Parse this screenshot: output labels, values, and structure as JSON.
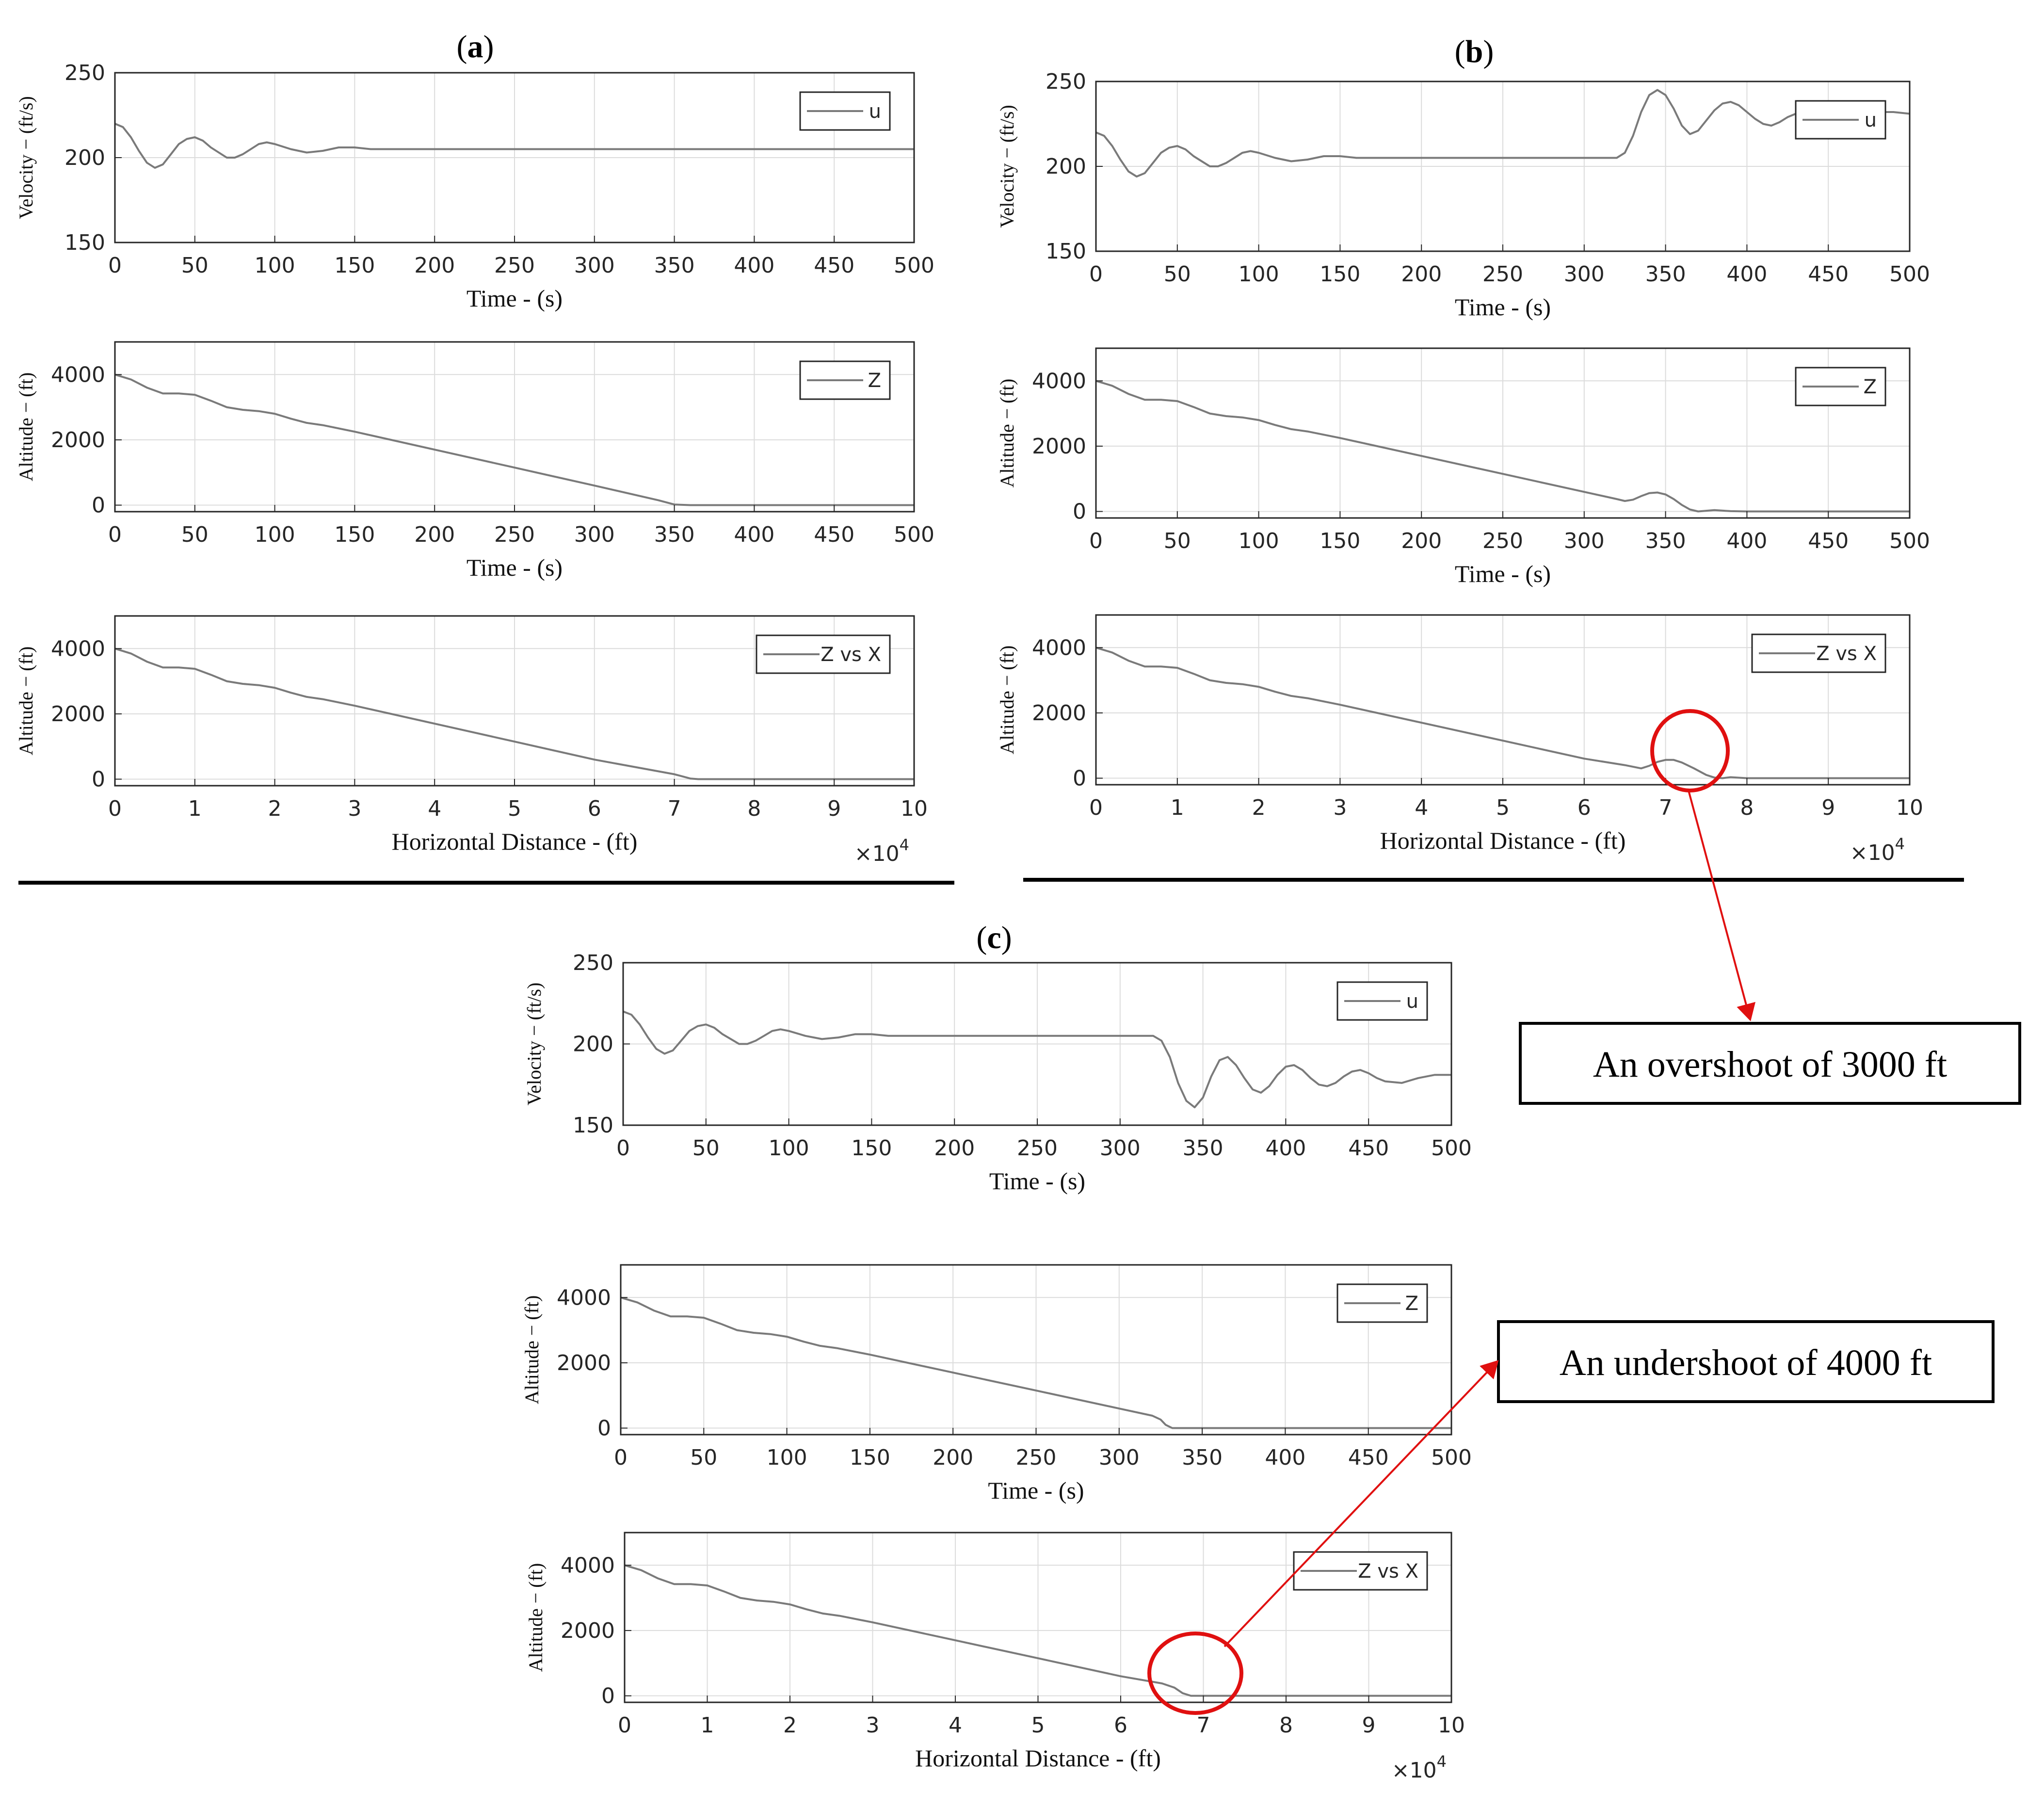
{
  "panels": [
    {
      "id": "a",
      "label": "a",
      "subplots": [
        {
          "kind": "velocity",
          "ylabel": "Velocity − (ft/s)",
          "xlabel": "Time - (s)",
          "legend": "u"
        },
        {
          "kind": "altitude_time",
          "ylabel": "Altitude − (ft)",
          "xlabel": "Time - (s)",
          "legend": "Z"
        },
        {
          "kind": "altitude_distance",
          "ylabel": "Altitude − (ft)",
          "xlabel": "Horizontal Distance - (ft)",
          "legend": "Z vs X",
          "exponent": "×10",
          "exponent_power": "4"
        }
      ]
    },
    {
      "id": "b",
      "label": "b",
      "subplots": [
        {
          "kind": "velocity",
          "ylabel": "Velocity − (ft/s)",
          "xlabel": "Time - (s)",
          "legend": "u"
        },
        {
          "kind": "altitude_time",
          "ylabel": "Altitude − (ft)",
          "xlabel": "Time - (s)",
          "legend": "Z"
        },
        {
          "kind": "altitude_distance",
          "ylabel": "Altitude − (ft)",
          "xlabel": "Horizontal Distance - (ft)",
          "legend": "Z vs X",
          "exponent": "×10",
          "exponent_power": "4"
        }
      ]
    },
    {
      "id": "c",
      "label": "c",
      "subplots": [
        {
          "kind": "velocity",
          "ylabel": "Velocity − (ft/s)",
          "xlabel": "Time - (s)",
          "legend": "u"
        },
        {
          "kind": "altitude_time",
          "ylabel": "Altitude − (ft)",
          "xlabel": "Time - (s)",
          "legend": "Z"
        },
        {
          "kind": "altitude_distance",
          "ylabel": "Altitude − (ft)",
          "xlabel": "Horizontal Distance - (ft)",
          "legend": "Z vs X",
          "exponent": "×10",
          "exponent_power": "4"
        }
      ]
    }
  ],
  "annotations": {
    "overshoot": "An overshoot of 3000 ft",
    "undershoot": "An undershoot of 4000 ft"
  },
  "colors": {
    "line": "#7a7a7a",
    "axis": "#262626",
    "grid": "#dcdcdc",
    "highlight": "#e01010"
  },
  "chart_data": [
    {
      "type": "line",
      "panel": "a",
      "xlabel": "Time - (s)",
      "ylabel": "Velocity − (ft/s)",
      "xlim": [
        0,
        500
      ],
      "ylim": [
        150,
        250
      ],
      "xticks": [
        0,
        50,
        100,
        150,
        200,
        250,
        300,
        350,
        400,
        450,
        500
      ],
      "yticks": [
        150,
        200,
        250
      ],
      "grid": true,
      "legend_position": "top-right",
      "series": [
        {
          "name": "u",
          "x": [
            0,
            5,
            10,
            15,
            20,
            25,
            30,
            35,
            40,
            45,
            50,
            55,
            60,
            65,
            70,
            75,
            80,
            85,
            90,
            95,
            100,
            110,
            120,
            130,
            140,
            150,
            160,
            170,
            180,
            200,
            220,
            250,
            300,
            350,
            400,
            450,
            500
          ],
          "y": [
            220,
            218,
            212,
            204,
            197,
            194,
            196,
            202,
            208,
            211,
            212,
            210,
            206,
            203,
            200,
            200,
            202,
            205,
            208,
            209,
            208,
            205,
            203,
            204,
            206,
            206,
            205,
            205,
            205,
            205,
            205,
            205,
            205,
            205,
            205,
            205,
            205
          ]
        }
      ]
    },
    {
      "type": "line",
      "panel": "a",
      "xlabel": "Time - (s)",
      "ylabel": "Altitude − (ft)",
      "xlim": [
        0,
        500
      ],
      "ylim": [
        -200,
        5000
      ],
      "xticks": [
        0,
        50,
        100,
        150,
        200,
        250,
        300,
        350,
        400,
        450,
        500
      ],
      "yticks": [
        0,
        2000,
        4000
      ],
      "grid": true,
      "legend_position": "top-right",
      "series": [
        {
          "name": "Z",
          "x": [
            0,
            10,
            20,
            30,
            40,
            50,
            60,
            70,
            80,
            90,
            100,
            110,
            120,
            130,
            150,
            200,
            250,
            300,
            340,
            350,
            360,
            400,
            450,
            500
          ],
          "y": [
            4000,
            3850,
            3600,
            3420,
            3420,
            3380,
            3200,
            3000,
            2920,
            2880,
            2800,
            2650,
            2520,
            2450,
            2250,
            1700,
            1150,
            600,
            150,
            20,
            0,
            0,
            0,
            0
          ]
        }
      ]
    },
    {
      "type": "line",
      "panel": "a",
      "xlabel": "Horizontal Distance - (ft)",
      "ylabel": "Altitude − (ft)",
      "xlim": [
        0,
        10
      ],
      "ylim": [
        -200,
        5000
      ],
      "x_multiplier": "×10^4",
      "xticks": [
        0,
        1,
        2,
        3,
        4,
        5,
        6,
        7,
        8,
        9,
        10
      ],
      "yticks": [
        0,
        2000,
        4000
      ],
      "grid": true,
      "legend_position": "top-right",
      "series": [
        {
          "name": "Z vs X",
          "x": [
            0,
            0.2,
            0.4,
            0.6,
            0.8,
            1.0,
            1.2,
            1.4,
            1.6,
            1.8,
            2.0,
            2.2,
            2.4,
            2.6,
            3.0,
            4.0,
            5.0,
            6.0,
            7.0,
            7.2,
            7.3,
            8,
            9,
            10
          ],
          "y": [
            4000,
            3850,
            3600,
            3420,
            3420,
            3380,
            3200,
            3000,
            2920,
            2880,
            2800,
            2650,
            2520,
            2450,
            2250,
            1700,
            1150,
            600,
            150,
            20,
            0,
            0,
            0,
            0
          ]
        }
      ]
    },
    {
      "type": "line",
      "panel": "b",
      "xlabel": "Time - (s)",
      "ylabel": "Velocity − (ft/s)",
      "xlim": [
        0,
        500
      ],
      "ylim": [
        150,
        250
      ],
      "xticks": [
        0,
        50,
        100,
        150,
        200,
        250,
        300,
        350,
        400,
        450,
        500
      ],
      "yticks": [
        150,
        200,
        250
      ],
      "grid": true,
      "legend_position": "top-right",
      "series": [
        {
          "name": "u",
          "x": [
            0,
            5,
            10,
            15,
            20,
            25,
            30,
            35,
            40,
            45,
            50,
            55,
            60,
            65,
            70,
            75,
            80,
            85,
            90,
            95,
            100,
            110,
            120,
            130,
            140,
            150,
            160,
            170,
            180,
            200,
            250,
            300,
            320,
            325,
            330,
            335,
            340,
            345,
            350,
            355,
            360,
            365,
            370,
            375,
            380,
            385,
            390,
            395,
            400,
            405,
            410,
            415,
            420,
            425,
            430,
            435,
            440,
            445,
            450,
            460,
            470,
            480,
            490,
            500
          ],
          "y": [
            220,
            218,
            212,
            204,
            197,
            194,
            196,
            202,
            208,
            211,
            212,
            210,
            206,
            203,
            200,
            200,
            202,
            205,
            208,
            209,
            208,
            205,
            203,
            204,
            206,
            206,
            205,
            205,
            205,
            205,
            205,
            205,
            205,
            208,
            218,
            232,
            242,
            245,
            242,
            234,
            224,
            219,
            221,
            227,
            233,
            237,
            238,
            236,
            232,
            228,
            225,
            224,
            226,
            229,
            231,
            232,
            231,
            229,
            228,
            229,
            231,
            232,
            232,
            231
          ]
        }
      ]
    },
    {
      "type": "line",
      "panel": "b",
      "xlabel": "Time - (s)",
      "ylabel": "Altitude − (ft)",
      "xlim": [
        0,
        500
      ],
      "ylim": [
        -200,
        5000
      ],
      "xticks": [
        0,
        50,
        100,
        150,
        200,
        250,
        300,
        350,
        400,
        450,
        500
      ],
      "yticks": [
        0,
        2000,
        4000
      ],
      "grid": true,
      "legend_position": "top-right",
      "series": [
        {
          "name": "Z",
          "x": [
            0,
            10,
            20,
            30,
            40,
            50,
            60,
            70,
            80,
            90,
            100,
            110,
            120,
            130,
            150,
            200,
            250,
            300,
            320,
            325,
            330,
            335,
            340,
            345,
            350,
            355,
            360,
            365,
            370,
            380,
            390,
            400,
            450,
            500
          ],
          "y": [
            4000,
            3850,
            3600,
            3420,
            3420,
            3380,
            3200,
            3000,
            2920,
            2880,
            2800,
            2650,
            2520,
            2450,
            2250,
            1700,
            1150,
            600,
            380,
            320,
            360,
            470,
            560,
            580,
            520,
            380,
            200,
            60,
            0,
            40,
            10,
            0,
            0,
            0
          ]
        }
      ]
    },
    {
      "type": "line",
      "panel": "b",
      "xlabel": "Horizontal Distance - (ft)",
      "ylabel": "Altitude − (ft)",
      "xlim": [
        0,
        10
      ],
      "ylim": [
        -200,
        5000
      ],
      "x_multiplier": "×10^4",
      "xticks": [
        0,
        1,
        2,
        3,
        4,
        5,
        6,
        7,
        8,
        9,
        10
      ],
      "yticks": [
        0,
        2000,
        4000
      ],
      "grid": true,
      "legend_position": "top-right",
      "series": [
        {
          "name": "Z vs X",
          "x": [
            0,
            0.2,
            0.4,
            0.6,
            0.8,
            1.0,
            1.2,
            1.4,
            1.6,
            1.8,
            2.0,
            2.2,
            2.4,
            2.6,
            3.0,
            4.0,
            5.0,
            6.0,
            6.5,
            6.7,
            6.8,
            6.9,
            7.0,
            7.1,
            7.2,
            7.35,
            7.5,
            7.6,
            7.7,
            7.8,
            8,
            9,
            10
          ],
          "y": [
            4000,
            3850,
            3600,
            3420,
            3420,
            3380,
            3200,
            3000,
            2920,
            2880,
            2800,
            2650,
            2520,
            2450,
            2250,
            1700,
            1150,
            600,
            400,
            300,
            380,
            500,
            560,
            560,
            480,
            300,
            100,
            20,
            0,
            30,
            0,
            0,
            0
          ]
        }
      ]
    },
    {
      "type": "line",
      "panel": "c",
      "xlabel": "Time - (s)",
      "ylabel": "Velocity − (ft/s)",
      "xlim": [
        0,
        500
      ],
      "ylim": [
        150,
        250
      ],
      "xticks": [
        0,
        50,
        100,
        150,
        200,
        250,
        300,
        350,
        400,
        450,
        500
      ],
      "yticks": [
        150,
        200,
        250
      ],
      "grid": true,
      "legend_position": "top-right",
      "series": [
        {
          "name": "u",
          "x": [
            0,
            5,
            10,
            15,
            20,
            25,
            30,
            35,
            40,
            45,
            50,
            55,
            60,
            65,
            70,
            75,
            80,
            85,
            90,
            95,
            100,
            110,
            120,
            130,
            140,
            150,
            160,
            170,
            180,
            200,
            250,
            300,
            320,
            325,
            330,
            335,
            340,
            345,
            350,
            355,
            360,
            365,
            370,
            375,
            380,
            385,
            390,
            395,
            400,
            405,
            410,
            415,
            420,
            425,
            430,
            435,
            440,
            445,
            450,
            455,
            460,
            470,
            480,
            490,
            500
          ],
          "y": [
            220,
            218,
            212,
            204,
            197,
            194,
            196,
            202,
            208,
            211,
            212,
            210,
            206,
            203,
            200,
            200,
            202,
            205,
            208,
            209,
            208,
            205,
            203,
            204,
            206,
            206,
            205,
            205,
            205,
            205,
            205,
            205,
            205,
            202,
            192,
            176,
            165,
            161,
            167,
            180,
            190,
            192,
            187,
            179,
            172,
            170,
            174,
            181,
            186,
            187,
            184,
            179,
            175,
            174,
            176,
            180,
            183,
            184,
            182,
            179,
            177,
            176,
            179,
            181,
            181
          ]
        }
      ]
    },
    {
      "type": "line",
      "panel": "c",
      "xlabel": "Time - (s)",
      "ylabel": "Altitude − (ft)",
      "xlim": [
        0,
        500
      ],
      "ylim": [
        -200,
        5000
      ],
      "xticks": [
        0,
        50,
        100,
        150,
        200,
        250,
        300,
        350,
        400,
        450,
        500
      ],
      "yticks": [
        0,
        2000,
        4000
      ],
      "grid": true,
      "legend_position": "top-right",
      "series": [
        {
          "name": "Z",
          "x": [
            0,
            10,
            20,
            30,
            40,
            50,
            60,
            70,
            80,
            90,
            100,
            110,
            120,
            130,
            150,
            200,
            250,
            300,
            320,
            325,
            328,
            332,
            340,
            400,
            450,
            500
          ],
          "y": [
            4000,
            3850,
            3600,
            3420,
            3420,
            3380,
            3200,
            3000,
            2920,
            2880,
            2800,
            2650,
            2520,
            2450,
            2250,
            1700,
            1150,
            600,
            380,
            260,
            100,
            0,
            0,
            0,
            0,
            0
          ]
        }
      ]
    },
    {
      "type": "line",
      "panel": "c",
      "xlabel": "Horizontal Distance - (ft)",
      "ylabel": "Altitude − (ft)",
      "xlim": [
        0,
        10
      ],
      "ylim": [
        -200,
        5000
      ],
      "x_multiplier": "×10^4",
      "xticks": [
        0,
        1,
        2,
        3,
        4,
        5,
        6,
        7,
        8,
        9,
        10
      ],
      "yticks": [
        0,
        2000,
        4000
      ],
      "grid": true,
      "legend_position": "top-right",
      "series": [
        {
          "name": "Z vs X",
          "x": [
            0,
            0.2,
            0.4,
            0.6,
            0.8,
            1.0,
            1.2,
            1.4,
            1.6,
            1.8,
            2.0,
            2.2,
            2.4,
            2.6,
            3.0,
            4.0,
            5.0,
            6.0,
            6.5,
            6.65,
            6.75,
            6.85,
            7,
            8,
            9,
            10
          ],
          "y": [
            4000,
            3850,
            3600,
            3420,
            3420,
            3380,
            3200,
            3000,
            2920,
            2880,
            2800,
            2650,
            2520,
            2450,
            2250,
            1700,
            1150,
            600,
            380,
            250,
            80,
            0,
            0,
            0,
            0,
            0
          ]
        }
      ]
    }
  ]
}
